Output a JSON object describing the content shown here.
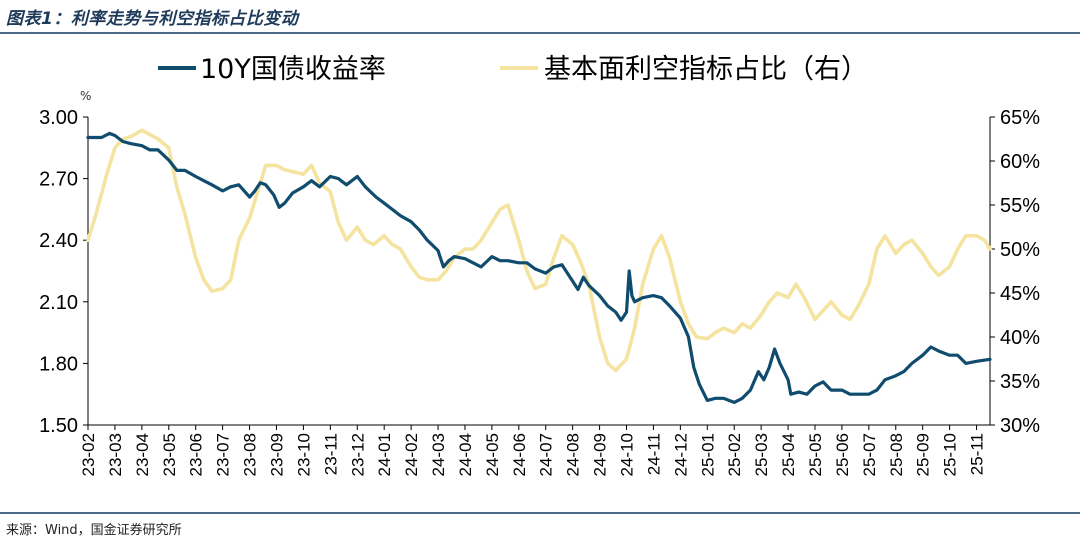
{
  "title": "图表1：利率走势与利空指标占比变动",
  "source": "来源：Wind，国金证券研究所",
  "colors": {
    "series1": "#0f4c6e",
    "series2": "#f5e3a0",
    "rule": "#4f6b8a",
    "title": "#1f3a5a"
  },
  "chart_data": {
    "type": "line",
    "y_unit_label": "%",
    "left_axis": {
      "min": 1.5,
      "max": 3.0,
      "ticks": [
        "3.00",
        "2.70",
        "2.40",
        "2.10",
        "1.80",
        "1.50"
      ],
      "tick_values": [
        3.0,
        2.7,
        2.4,
        2.1,
        1.8,
        1.5
      ]
    },
    "right_axis": {
      "min": 30,
      "max": 65,
      "ticks": [
        "65%",
        "60%",
        "55%",
        "50%",
        "45%",
        "40%",
        "35%",
        "30%"
      ],
      "tick_values": [
        65,
        60,
        55,
        50,
        45,
        40,
        35,
        30
      ]
    },
    "x_labels": [
      "23-02",
      "23-03",
      "23-04",
      "23-05",
      "23-06",
      "23-07",
      "23-08",
      "23-09",
      "23-10",
      "23-11",
      "23-12",
      "24-01",
      "24-02",
      "24-03",
      "24-04",
      "24-05",
      "24-06",
      "24-07",
      "24-08",
      "24-09",
      "24-10",
      "24-11",
      "24-12",
      "25-01",
      "25-02",
      "25-03",
      "25-04",
      "25-05",
      "25-06",
      "25-07",
      "25-08",
      "25-09",
      "25-10",
      "25-11"
    ],
    "x_range": [
      0,
      33.5
    ],
    "series": [
      {
        "name": "10Y国债收益率",
        "axis": "left",
        "points": [
          [
            0,
            2.9
          ],
          [
            0.5,
            2.9
          ],
          [
            0.8,
            2.92
          ],
          [
            1.0,
            2.91
          ],
          [
            1.3,
            2.88
          ],
          [
            1.6,
            2.87
          ],
          [
            2.0,
            2.86
          ],
          [
            2.3,
            2.84
          ],
          [
            2.6,
            2.84
          ],
          [
            3.0,
            2.79
          ],
          [
            3.3,
            2.74
          ],
          [
            3.6,
            2.74
          ],
          [
            4.0,
            2.71
          ],
          [
            4.3,
            2.69
          ],
          [
            4.6,
            2.67
          ],
          [
            5.0,
            2.64
          ],
          [
            5.3,
            2.66
          ],
          [
            5.6,
            2.67
          ],
          [
            6.0,
            2.61
          ],
          [
            6.2,
            2.64
          ],
          [
            6.4,
            2.68
          ],
          [
            6.6,
            2.67
          ],
          [
            6.9,
            2.62
          ],
          [
            7.1,
            2.56
          ],
          [
            7.3,
            2.58
          ],
          [
            7.6,
            2.63
          ],
          [
            8.0,
            2.66
          ],
          [
            8.3,
            2.69
          ],
          [
            8.6,
            2.66
          ],
          [
            9.0,
            2.71
          ],
          [
            9.3,
            2.7
          ],
          [
            9.6,
            2.67
          ],
          [
            10.0,
            2.71
          ],
          [
            10.3,
            2.66
          ],
          [
            10.7,
            2.61
          ],
          [
            11.0,
            2.58
          ],
          [
            11.3,
            2.55
          ],
          [
            11.6,
            2.52
          ],
          [
            12.0,
            2.49
          ],
          [
            12.3,
            2.45
          ],
          [
            12.6,
            2.4
          ],
          [
            13.0,
            2.35
          ],
          [
            13.2,
            2.27
          ],
          [
            13.4,
            2.3
          ],
          [
            13.6,
            2.32
          ],
          [
            14.0,
            2.31
          ],
          [
            14.3,
            2.29
          ],
          [
            14.6,
            2.27
          ],
          [
            15.0,
            2.32
          ],
          [
            15.3,
            2.3
          ],
          [
            15.6,
            2.3
          ],
          [
            16.0,
            2.29
          ],
          [
            16.3,
            2.29
          ],
          [
            16.6,
            2.26
          ],
          [
            17.0,
            2.24
          ],
          [
            17.3,
            2.27
          ],
          [
            17.6,
            2.28
          ],
          [
            18.0,
            2.2
          ],
          [
            18.2,
            2.16
          ],
          [
            18.4,
            2.22
          ],
          [
            18.6,
            2.18
          ],
          [
            19.0,
            2.13
          ],
          [
            19.3,
            2.08
          ],
          [
            19.6,
            2.05
          ],
          [
            19.8,
            2.01
          ],
          [
            20.0,
            2.05
          ],
          [
            20.1,
            2.25
          ],
          [
            20.2,
            2.13
          ],
          [
            20.3,
            2.1
          ],
          [
            20.6,
            2.12
          ],
          [
            21.0,
            2.13
          ],
          [
            21.3,
            2.12
          ],
          [
            21.6,
            2.08
          ],
          [
            22.0,
            2.02
          ],
          [
            22.3,
            1.93
          ],
          [
            22.5,
            1.78
          ],
          [
            22.7,
            1.7
          ],
          [
            23.0,
            1.62
          ],
          [
            23.3,
            1.63
          ],
          [
            23.6,
            1.63
          ],
          [
            24.0,
            1.61
          ],
          [
            24.3,
            1.63
          ],
          [
            24.6,
            1.67
          ],
          [
            24.9,
            1.76
          ],
          [
            25.1,
            1.72
          ],
          [
            25.3,
            1.78
          ],
          [
            25.5,
            1.87
          ],
          [
            25.7,
            1.8
          ],
          [
            26.0,
            1.72
          ],
          [
            26.1,
            1.65
          ],
          [
            26.4,
            1.66
          ],
          [
            26.7,
            1.65
          ],
          [
            27.0,
            1.69
          ],
          [
            27.3,
            1.71
          ],
          [
            27.6,
            1.67
          ],
          [
            28.0,
            1.67
          ],
          [
            28.3,
            1.65
          ],
          [
            28.6,
            1.65
          ],
          [
            29.0,
            1.65
          ],
          [
            29.3,
            1.67
          ],
          [
            29.6,
            1.72
          ],
          [
            30.0,
            1.74
          ],
          [
            30.3,
            1.76
          ],
          [
            30.6,
            1.8
          ],
          [
            31.0,
            1.84
          ],
          [
            31.3,
            1.88
          ],
          [
            31.6,
            1.86
          ],
          [
            32.0,
            1.84
          ],
          [
            32.3,
            1.84
          ],
          [
            32.6,
            1.8
          ],
          [
            33.0,
            1.81
          ],
          [
            33.5,
            1.82
          ]
        ]
      },
      {
        "name": "基本面利空指标占比（右）",
        "axis": "right",
        "points": [
          [
            0,
            51.0
          ],
          [
            0.3,
            54.0
          ],
          [
            0.7,
            58.5
          ],
          [
            1.0,
            61.5
          ],
          [
            1.3,
            62.5
          ],
          [
            1.6,
            62.8
          ],
          [
            2.0,
            63.5
          ],
          [
            2.3,
            63.0
          ],
          [
            2.6,
            62.5
          ],
          [
            3.0,
            61.5
          ],
          [
            3.3,
            57.0
          ],
          [
            3.6,
            54.0
          ],
          [
            4.0,
            49.0
          ],
          [
            4.3,
            46.5
          ],
          [
            4.6,
            45.2
          ],
          [
            5.0,
            45.5
          ],
          [
            5.3,
            46.5
          ],
          [
            5.6,
            51.0
          ],
          [
            6.0,
            53.5
          ],
          [
            6.3,
            56.5
          ],
          [
            6.6,
            59.5
          ],
          [
            7.0,
            59.5
          ],
          [
            7.3,
            59.0
          ],
          [
            7.6,
            58.8
          ],
          [
            8.0,
            58.5
          ],
          [
            8.3,
            59.5
          ],
          [
            8.6,
            57.5
          ],
          [
            9.0,
            56.5
          ],
          [
            9.3,
            53.0
          ],
          [
            9.6,
            51.0
          ],
          [
            10.0,
            52.5
          ],
          [
            10.3,
            51.0
          ],
          [
            10.6,
            50.5
          ],
          [
            11.0,
            51.5
          ],
          [
            11.3,
            50.5
          ],
          [
            11.6,
            50.0
          ],
          [
            12.0,
            48.0
          ],
          [
            12.3,
            46.8
          ],
          [
            12.6,
            46.5
          ],
          [
            13.0,
            46.5
          ],
          [
            13.3,
            47.5
          ],
          [
            13.6,
            49.0
          ],
          [
            14.0,
            50.0
          ],
          [
            14.3,
            50.0
          ],
          [
            14.6,
            51.0
          ],
          [
            15.0,
            53.0
          ],
          [
            15.3,
            54.5
          ],
          [
            15.6,
            55.0
          ],
          [
            16.0,
            51.0
          ],
          [
            16.3,
            47.5
          ],
          [
            16.6,
            45.5
          ],
          [
            17.0,
            46.0
          ],
          [
            17.3,
            49.0
          ],
          [
            17.6,
            51.5
          ],
          [
            18.0,
            50.5
          ],
          [
            18.3,
            48.5
          ],
          [
            18.6,
            46.0
          ],
          [
            19.0,
            40.0
          ],
          [
            19.3,
            37.0
          ],
          [
            19.6,
            36.2
          ],
          [
            20.0,
            37.5
          ],
          [
            20.3,
            41.0
          ],
          [
            20.6,
            46.0
          ],
          [
            21.0,
            50.0
          ],
          [
            21.3,
            51.5
          ],
          [
            21.6,
            49.0
          ],
          [
            22.0,
            44.0
          ],
          [
            22.3,
            41.5
          ],
          [
            22.6,
            40.0
          ],
          [
            23.0,
            39.8
          ],
          [
            23.3,
            40.5
          ],
          [
            23.6,
            41.0
          ],
          [
            24.0,
            40.5
          ],
          [
            24.3,
            41.5
          ],
          [
            24.6,
            41.0
          ],
          [
            25.0,
            42.5
          ],
          [
            25.3,
            44.0
          ],
          [
            25.6,
            45.0
          ],
          [
            26.0,
            44.5
          ],
          [
            26.3,
            46.0
          ],
          [
            26.6,
            44.5
          ],
          [
            27.0,
            42.0
          ],
          [
            27.3,
            43.0
          ],
          [
            27.6,
            44.0
          ],
          [
            28.0,
            42.5
          ],
          [
            28.3,
            42.0
          ],
          [
            28.6,
            43.5
          ],
          [
            29.0,
            46.0
          ],
          [
            29.3,
            50.0
          ],
          [
            29.6,
            51.5
          ],
          [
            30.0,
            49.5
          ],
          [
            30.3,
            50.5
          ],
          [
            30.6,
            51.0
          ],
          [
            31.0,
            49.5
          ],
          [
            31.3,
            48.0
          ],
          [
            31.6,
            47.0
          ],
          [
            32.0,
            48.0
          ],
          [
            32.3,
            50.0
          ],
          [
            32.6,
            51.5
          ],
          [
            33.0,
            51.5
          ],
          [
            33.3,
            51.0
          ],
          [
            33.5,
            50.0
          ]
        ]
      }
    ]
  }
}
